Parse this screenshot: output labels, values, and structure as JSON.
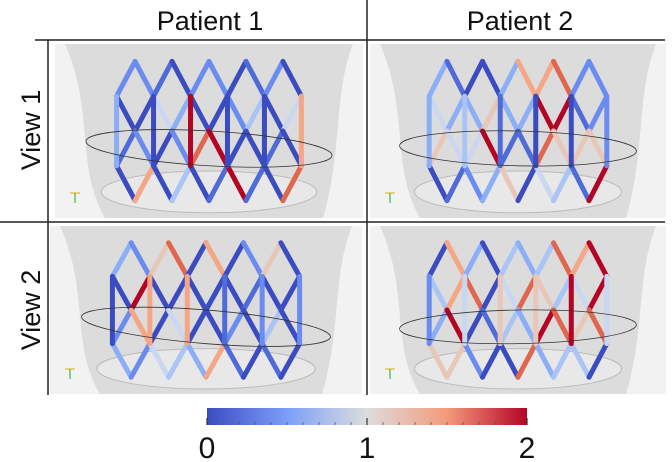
{
  "columns": [
    "Patient 1",
    "Patient 2"
  ],
  "rows": [
    "View 1",
    "View 2"
  ],
  "colorbar": {
    "ticks": [
      0,
      1,
      2
    ]
  }
}
